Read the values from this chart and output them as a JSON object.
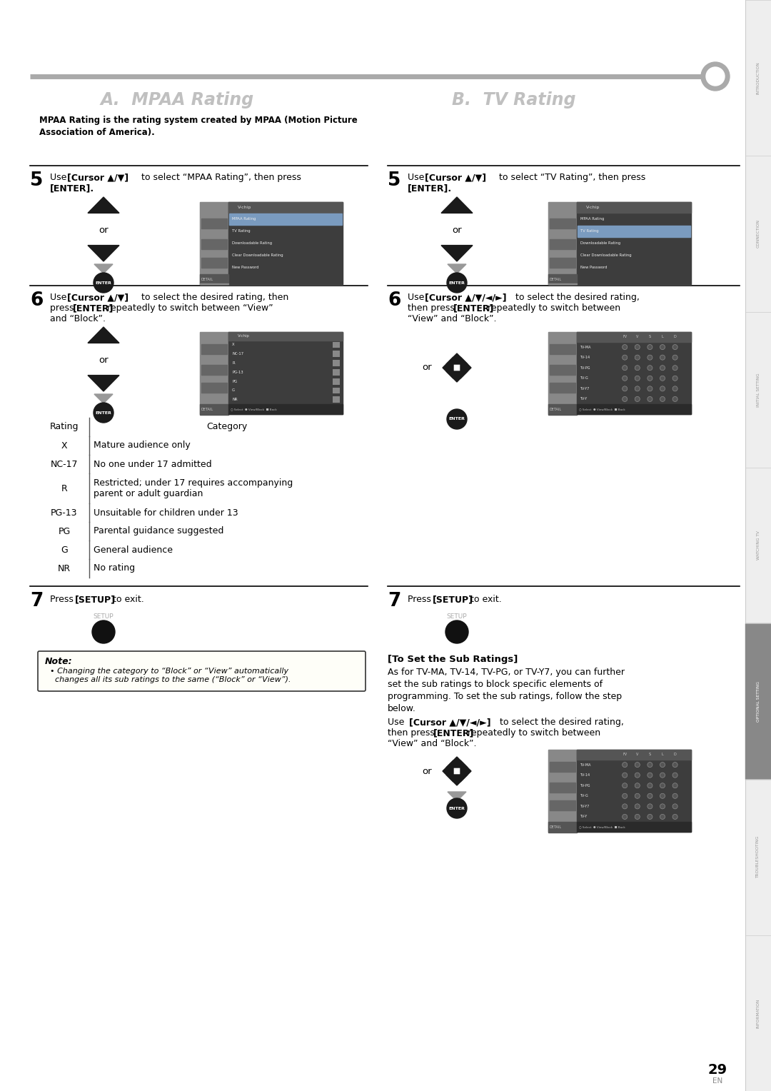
{
  "bg_color": "#ffffff",
  "page_number": "29",
  "sidebar_labels": [
    "INTRODUCTION",
    "CONNECTION",
    "INITIAL SETTING",
    "WATCHING TV",
    "OPTIONAL SETTING",
    "TROUBLESHOOTING",
    "INFORMATION"
  ],
  "active_sidebar": "OPTIONAL SETTING",
  "section_a_title": "A.  MPAA Rating",
  "section_b_title": "B.  TV Rating",
  "mpaa_intro_bold": "MPAA Rating is the rating system created by MPAA (Motion Picture\nAssociation of America).",
  "table_rows": [
    [
      "X",
      "Mature audience only"
    ],
    [
      "NC-17",
      "No one under 17 admitted"
    ],
    [
      "R",
      "Restricted; under 17 requires accompanying\nparent or adult guardian"
    ],
    [
      "PG-13",
      "Unsuitable for children under 13"
    ],
    [
      "PG",
      "Parental guidance suggested"
    ],
    [
      "G",
      "General audience"
    ],
    [
      "NR",
      "No rating"
    ]
  ],
  "note_text": "Note:",
  "note_body": "  • Changing the category to “Block” or “View” automatically\n    changes all its sub ratings to the same (“Block” or “View”).",
  "sub_ratings_title": "[To Set the Sub Ratings]",
  "sub_ratings_body": "As for TV-MA, TV-14, TV-PG, or TV-Y7, you can further\nset the sub ratings to block specific elements of\nprogramming. To set the sub ratings, follow the step\nbelow.",
  "vchip_menu_items": [
    "MPAA Rating",
    "TV Rating",
    "Downloadable Rating",
    "Clear Downloadable Rating",
    "New Password"
  ],
  "mpaa_ratings_list": [
    "X",
    "NC-17",
    "R",
    "PG-13",
    "PG",
    "G",
    "NR"
  ],
  "tv_ratings_list": [
    "TV-MA",
    "TV-14",
    "TV-PG",
    "TV-G",
    "TV-Y7",
    "TV-Y"
  ]
}
